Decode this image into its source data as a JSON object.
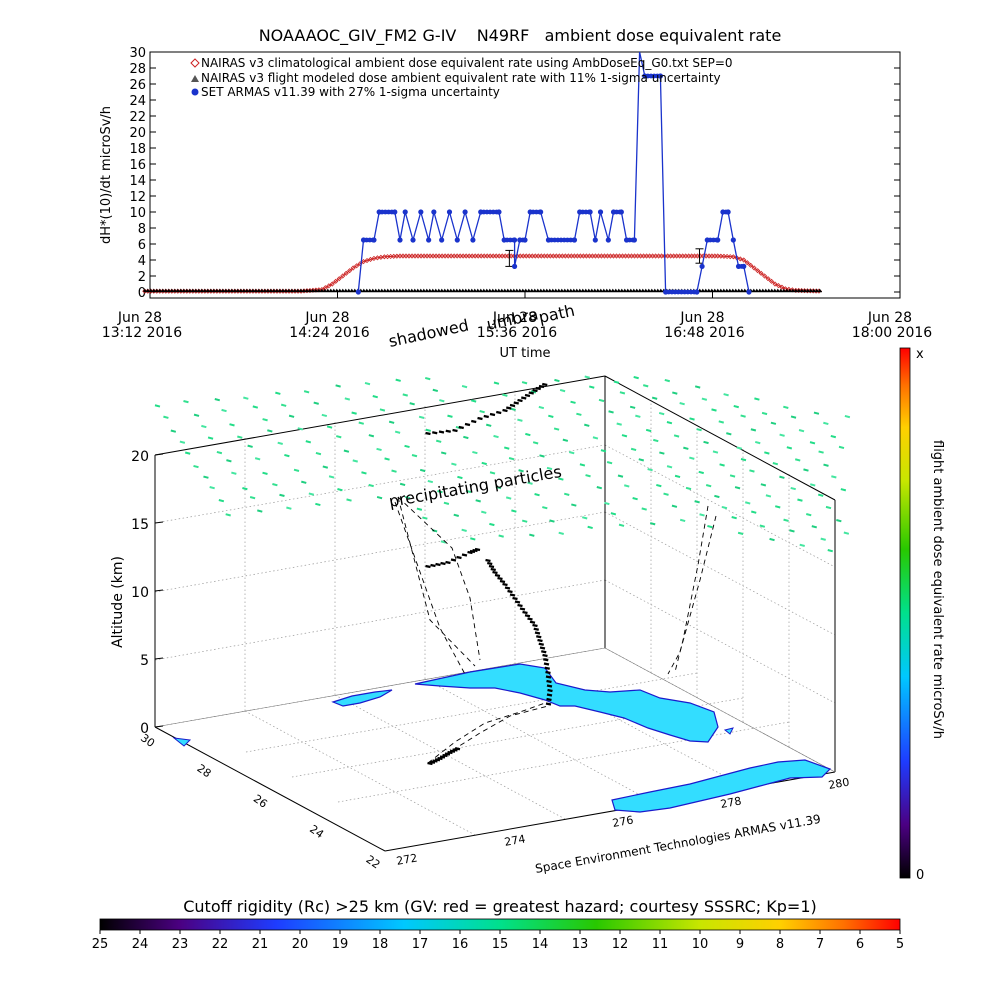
{
  "chart_data": [
    {
      "type": "line",
      "title": "NOAAAOC_GIV_FM2 G-IV    N49RF   ambient dose equivalent rate",
      "ylabel": "dH*(10)/dt microSv/h",
      "xlabel": "UT time",
      "ylim": [
        0,
        30
      ],
      "yticks": [
        "0",
        "2",
        "4",
        "6",
        "8",
        "10",
        "12",
        "14",
        "16",
        "18",
        "20",
        "22",
        "24",
        "26",
        "28",
        "30"
      ],
      "xlim_minutes": [
        792,
        1080
      ],
      "xticks": [
        {
          "line1": "Jun 28",
          "line2": "13:12 2016",
          "t": 792
        },
        {
          "line1": "Jun 28",
          "line2": "14:24 2016",
          "t": 864
        },
        {
          "line1": "Jun 28",
          "line2": "15:36 2016",
          "t": 936
        },
        {
          "line1": "Jun 28",
          "line2": "16:48 2016",
          "t": 1008
        },
        {
          "line1": "Jun 28",
          "line2": "18:00 2016",
          "t": 1080
        }
      ],
      "legend": [
        "NAIRAS v3 climatological ambient dose equivalent rate using AmbDoseEq_G0.txt SEP=0",
        "NAIRAS v3 flight modeled dose ambient equivalent rate with 11% 1-sigma uncertainty",
        "SET ARMAS v11.39 with 27% 1-sigma uncertainty"
      ],
      "legend_position": "top-left",
      "series": [
        {
          "name": "NAIRAS v3 climatological ambient dose equivalent rate using AmbDoseEq_G0.txt SEP=0",
          "color": "#cc2222",
          "marker": "diamond",
          "points": [
            [
              790,
              0.1
            ],
            [
              850,
              0.1
            ],
            [
              858,
              0.3
            ],
            [
              862,
              1.0
            ],
            [
              866,
              2.0
            ],
            [
              870,
              3.0
            ],
            [
              874,
              3.8
            ],
            [
              878,
              4.2
            ],
            [
              882,
              4.4
            ],
            [
              888,
              4.5
            ],
            [
              1000,
              4.5
            ],
            [
              1010,
              4.5
            ],
            [
              1016,
              4.4
            ],
            [
              1020,
              4.0
            ],
            [
              1024,
              3.0
            ],
            [
              1028,
              2.0
            ],
            [
              1032,
              1.0
            ],
            [
              1036,
              0.4
            ],
            [
              1040,
              0.2
            ],
            [
              1050,
              0.1
            ]
          ]
        },
        {
          "name": "NAIRAS v3 flight modeled dose ambient equivalent rate with 11% 1-sigma uncertainty",
          "color": "#000000",
          "marker": "triangle",
          "points": [
            [
              790,
              0.05
            ],
            [
              1050,
              0.05
            ]
          ],
          "errorbars": [
            [
              930,
              4.2,
              1.0
            ],
            [
              1003,
              4.5,
              0.9
            ]
          ]
        },
        {
          "name": "SET ARMAS v11.39 with 27% 1-sigma uncertainty",
          "color": "#1a33cc",
          "marker": "circle",
          "points": [
            [
              872,
              0
            ],
            [
              874,
              6.5
            ],
            [
              878,
              6.5
            ],
            [
              880,
              10.0
            ],
            [
              886,
              10.0
            ],
            [
              888,
              6.5
            ],
            [
              890,
              10.0
            ],
            [
              893,
              6.5
            ],
            [
              896,
              10.0
            ],
            [
              899,
              6.5
            ],
            [
              901,
              10.0
            ],
            [
              904,
              6.5
            ],
            [
              907,
              10.0
            ],
            [
              910,
              6.5
            ],
            [
              913,
              10.0
            ],
            [
              916,
              6.5
            ],
            [
              919,
              10.0
            ],
            [
              926,
              10.0
            ],
            [
              928,
              6.5
            ],
            [
              932,
              6.5
            ],
            [
              932,
              3.2
            ],
            [
              934,
              6.5
            ],
            [
              936,
              6.5
            ],
            [
              938,
              10.0
            ],
            [
              942,
              10.0
            ],
            [
              945,
              6.5
            ],
            [
              955,
              6.5
            ],
            [
              957,
              10.0
            ],
            [
              961,
              10.0
            ],
            [
              963,
              6.5
            ],
            [
              965,
              10.0
            ],
            [
              968,
              6.5
            ],
            [
              970,
              10.0
            ],
            [
              973,
              10.0
            ],
            [
              975,
              6.5
            ],
            [
              978,
              6.5
            ],
            [
              980,
              30.5
            ],
            [
              982,
              27.0
            ],
            [
              988,
              27.0
            ],
            [
              990,
              0
            ],
            [
              1002,
              0
            ],
            [
              1004,
              3.2
            ],
            [
              1006,
              6.5
            ],
            [
              1010,
              6.5
            ],
            [
              1012,
              10.0
            ],
            [
              1014,
              10.0
            ],
            [
              1016,
              6.5
            ],
            [
              1018,
              3.2
            ],
            [
              1020,
              3.2
            ],
            [
              1022,
              0
            ]
          ]
        }
      ]
    },
    {
      "type": "scatter",
      "annotations": [
        "shadowed",
        "umbra",
        "path",
        "precipitating particles",
        "Space Environment Technologies ARMAS v11.39"
      ],
      "zlabel": "Altitude (km)",
      "zlim": [
        0,
        20
      ],
      "zticks": [
        "0",
        "5",
        "10",
        "15",
        "20"
      ],
      "lat_ticks": [
        "30",
        "28",
        "26",
        "24",
        "22"
      ],
      "lon_ticks": [
        "272",
        "274",
        "276",
        "278",
        "280"
      ],
      "colorbar_label": "flight ambient dose equivalent rate microSv/h",
      "colorbar_top": "x",
      "colorbar_bottom": "0"
    },
    {
      "type": "colorbar",
      "title": "Cutoff rigidity (Rc) >25 km (GV: red = greatest hazard; courtesy SSSRC; Kp=1)",
      "ticks": [
        "25",
        "24",
        "23",
        "22",
        "21",
        "20",
        "19",
        "18",
        "17",
        "16",
        "15",
        "14",
        "13",
        "12",
        "11",
        "10",
        "9",
        "8",
        "7",
        "6",
        "5"
      ]
    }
  ]
}
